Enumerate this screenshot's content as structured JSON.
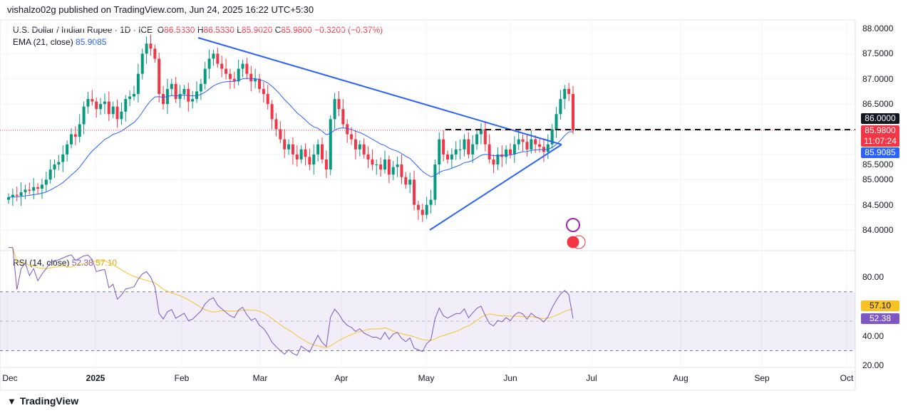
{
  "header": {
    "published": "vishalzo02g published on TradingView.com, Jun 24, 2025 16:22 UTC+5:30"
  },
  "legend": {
    "symbol": "U.S. Dollar / Indian Rupee · 1D · ICE",
    "o_label": "O",
    "o": "86.5330",
    "h_label": "H",
    "h": "86.5330",
    "l_label": "L",
    "l": "85.9020",
    "c_label": "C",
    "c": "85.9800",
    "change": "−0.3200 (−0.37%)"
  },
  "ema": {
    "label": "EMA (21, close)",
    "value": "85.9085"
  },
  "rsi": {
    "label": "RSI (14, close)",
    "value": "52.38",
    "ma": "57.10"
  },
  "tags": {
    "level": "86.0000",
    "last": "85.9800",
    "countdown": "11:07:24",
    "ema": "85.9085",
    "rsi_ma": "57.10",
    "rsi": "52.38"
  },
  "colors": {
    "up": "#089981",
    "down": "#f23645",
    "ema": "#2962ff",
    "rsi": "#7e57c2",
    "rsi_ma": "#f7c325"
  },
  "footer": {
    "brand": "TradingView"
  },
  "chart_data": {
    "type": "candlestick",
    "price_ticks": [
      "88.0000",
      "87.5000",
      "87.0000",
      "86.5000",
      "86.0000",
      "85.5000",
      "85.0000",
      "84.5000",
      "84.0000"
    ],
    "rsi_ticks": [
      "80.00",
      "40.00",
      "20.00"
    ],
    "x_ticks": [
      "Dec",
      "2025",
      "Feb",
      "Mar",
      "Apr",
      "May",
      "Jun",
      "Jul",
      "Aug",
      "Sep",
      "Oct"
    ],
    "ylim": [
      83.6,
      88.3
    ],
    "closes": [
      84.65,
      84.7,
      84.68,
      84.75,
      84.8,
      84.78,
      84.85,
      84.82,
      84.9,
      85.0,
      85.2,
      85.3,
      85.35,
      85.5,
      85.7,
      85.9,
      85.85,
      86.1,
      86.45,
      86.6,
      86.55,
      86.4,
      86.5,
      86.55,
      86.3,
      86.45,
      86.2,
      86.35,
      86.6,
      86.65,
      86.7,
      87.1,
      87.5,
      87.7,
      87.6,
      87.4,
      86.7,
      86.5,
      86.8,
      86.9,
      86.6,
      86.7,
      86.8,
      86.55,
      86.6,
      86.75,
      86.9,
      87.2,
      87.4,
      87.5,
      87.3,
      87.2,
      87.1,
      87.0,
      86.95,
      87.2,
      87.3,
      87.1,
      86.95,
      87.0,
      86.8,
      86.7,
      86.5,
      86.2,
      86.0,
      85.8,
      85.6,
      85.7,
      85.5,
      85.4,
      85.6,
      85.45,
      85.3,
      85.5,
      85.7,
      85.4,
      85.2,
      86.2,
      86.6,
      86.4,
      86.1,
      85.9,
      85.8,
      85.6,
      85.7,
      85.5,
      85.4,
      85.3,
      85.3,
      85.2,
      85.4,
      85.1,
      85.25,
      85.3,
      85.05,
      84.9,
      85.0,
      84.5,
      84.4,
      84.3,
      84.5,
      84.6,
      85.3,
      85.8,
      85.5,
      85.4,
      85.5,
      85.6,
      85.6,
      85.8,
      85.5,
      85.7,
      85.9,
      86.0,
      85.7,
      85.4,
      85.3,
      85.5,
      85.45,
      85.6,
      85.5,
      85.7,
      85.8,
      85.75,
      85.6,
      85.8,
      85.7,
      85.65,
      85.55,
      85.7,
      86.0,
      86.3,
      86.6,
      86.8,
      86.7,
      85.98
    ],
    "first_open": 84.6,
    "horizontal_level": 86.0,
    "ema_period": 21,
    "rsi_period": 14
  }
}
